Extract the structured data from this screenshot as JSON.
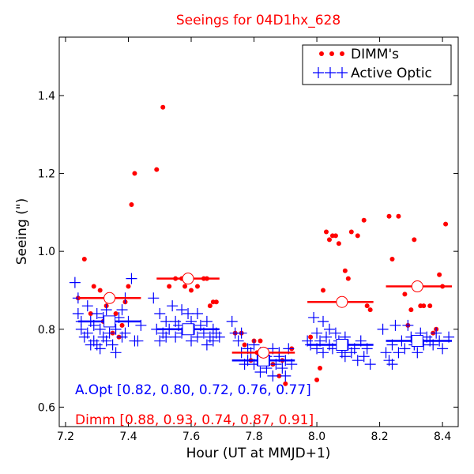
{
  "chart_data": {
    "type": "scatter",
    "title": "Seeings for 04D1hx_628",
    "xlabel": "Hour (UT at MMJD+1)",
    "ylabel": "Seeing (\")",
    "xlim": [
      7.18,
      8.45
    ],
    "ylim": [
      0.55,
      1.55
    ],
    "xticks": [
      7.2,
      7.4,
      7.6,
      7.8,
      8.0,
      8.2,
      8.4
    ],
    "xtick_labels": [
      "7.2",
      "7.4",
      "7.6",
      "7.8",
      "8.0",
      "8.2",
      "8.4"
    ],
    "yticks": [
      0.6,
      0.8,
      1.0,
      1.2,
      1.4
    ],
    "ytick_labels": [
      "0.6",
      "0.8",
      "1.0",
      "1.2",
      "1.4"
    ],
    "grid": false,
    "legend": {
      "position": "top-right",
      "entries": [
        {
          "label": "DIMM's",
          "color": "#ff0000",
          "marker": "dot"
        },
        {
          "label": "Active Optic",
          "color": "#0000ff",
          "marker": "plus"
        }
      ]
    },
    "annotations": {
      "aopt": {
        "text": "A.Opt [0.82, 0.80, 0.72, 0.76, 0.77]",
        "color": "#0000ff"
      },
      "dimm": {
        "text": "Dimm [0.88, 0.93, 0.74, 0.87, 0.91]",
        "color": "#ff0000"
      }
    },
    "colors": {
      "dimm": "#ff0000",
      "aopt": "#0000ff"
    },
    "series": [
      {
        "name": "DIMM's",
        "marker": "dot",
        "color": "#ff0000",
        "x": [
          7.24,
          7.26,
          7.28,
          7.29,
          7.31,
          7.32,
          7.33,
          7.34,
          7.35,
          7.36,
          7.37,
          7.38,
          7.39,
          7.4,
          7.41,
          7.42,
          7.49,
          7.51,
          7.53,
          7.55,
          7.57,
          7.58,
          7.59,
          7.6,
          7.62,
          7.64,
          7.65,
          7.66,
          7.67,
          7.68,
          7.74,
          7.76,
          7.77,
          7.79,
          7.8,
          7.81,
          7.82,
          7.84,
          7.86,
          7.88,
          7.89,
          7.9,
          7.92,
          7.98,
          8.0,
          8.01,
          8.02,
          8.03,
          8.04,
          8.05,
          8.06,
          8.07,
          8.09,
          8.1,
          8.11,
          8.13,
          8.15,
          8.16,
          8.17,
          8.23,
          8.24,
          8.26,
          8.28,
          8.29,
          8.3,
          8.31,
          8.33,
          8.34,
          8.36,
          8.37,
          8.38,
          8.39,
          8.4,
          8.41
        ],
        "values": [
          0.88,
          0.98,
          0.84,
          0.91,
          0.9,
          0.82,
          0.86,
          0.82,
          0.79,
          0.84,
          0.78,
          0.81,
          0.87,
          0.91,
          1.12,
          1.2,
          1.21,
          1.37,
          0.91,
          0.93,
          0.93,
          0.91,
          0.93,
          0.9,
          0.91,
          0.93,
          0.93,
          0.86,
          0.87,
          0.87,
          0.79,
          0.79,
          0.76,
          0.72,
          0.77,
          0.74,
          0.77,
          0.72,
          0.71,
          0.68,
          0.72,
          0.66,
          0.75,
          0.78,
          0.67,
          0.7,
          0.9,
          1.05,
          1.03,
          1.04,
          1.04,
          1.02,
          0.95,
          0.93,
          1.05,
          1.04,
          1.08,
          0.86,
          0.85,
          1.09,
          0.98,
          1.09,
          0.89,
          0.81,
          0.85,
          1.03,
          0.86,
          0.86,
          0.86,
          0.79,
          0.8,
          0.94,
          0.91,
          1.07
        ]
      },
      {
        "name": "Active Optic",
        "marker": "plus",
        "color": "#0000ff",
        "x": [
          7.23,
          7.24,
          7.24,
          7.25,
          7.25,
          7.26,
          7.27,
          7.27,
          7.28,
          7.28,
          7.29,
          7.29,
          7.3,
          7.3,
          7.31,
          7.31,
          7.32,
          7.32,
          7.33,
          7.33,
          7.34,
          7.35,
          7.35,
          7.36,
          7.36,
          7.37,
          7.38,
          7.38,
          7.39,
          7.39,
          7.4,
          7.41,
          7.42,
          7.43,
          7.44,
          7.48,
          7.49,
          7.5,
          7.5,
          7.51,
          7.52,
          7.52,
          7.53,
          7.54,
          7.55,
          7.55,
          7.56,
          7.57,
          7.57,
          7.58,
          7.59,
          7.6,
          7.6,
          7.61,
          7.62,
          7.62,
          7.63,
          7.64,
          7.65,
          7.65,
          7.66,
          7.67,
          7.67,
          7.68,
          7.69,
          7.73,
          7.74,
          7.75,
          7.76,
          7.76,
          7.77,
          7.78,
          7.78,
          7.79,
          7.8,
          7.8,
          7.81,
          7.82,
          7.82,
          7.83,
          7.84,
          7.84,
          7.85,
          7.86,
          7.86,
          7.87,
          7.88,
          7.88,
          7.89,
          7.9,
          7.9,
          7.91,
          7.92,
          7.97,
          7.98,
          7.99,
          8.0,
          8.0,
          8.01,
          8.02,
          8.02,
          8.03,
          8.04,
          8.04,
          8.05,
          8.06,
          8.07,
          8.08,
          8.09,
          8.09,
          8.1,
          8.11,
          8.12,
          8.13,
          8.14,
          8.15,
          8.16,
          8.17,
          8.21,
          8.22,
          8.23,
          8.24,
          8.24,
          8.25,
          8.26,
          8.27,
          8.28,
          8.29,
          8.3,
          8.31,
          8.32,
          8.33,
          8.34,
          8.35,
          8.36,
          8.37,
          8.38,
          8.39,
          8.4,
          8.42
        ],
        "values": [
          0.92,
          0.88,
          0.84,
          0.82,
          0.8,
          0.78,
          0.86,
          0.79,
          0.76,
          0.82,
          0.81,
          0.77,
          0.84,
          0.76,
          0.8,
          0.75,
          0.83,
          0.78,
          0.85,
          0.77,
          0.79,
          0.82,
          0.76,
          0.8,
          0.74,
          0.83,
          0.78,
          0.85,
          0.79,
          0.88,
          0.82,
          0.93,
          0.77,
          0.77,
          0.81,
          0.88,
          0.8,
          0.84,
          0.77,
          0.79,
          0.82,
          0.78,
          0.8,
          0.86,
          0.78,
          0.82,
          0.81,
          0.85,
          0.79,
          0.8,
          0.84,
          0.77,
          0.82,
          0.8,
          0.78,
          0.84,
          0.81,
          0.79,
          0.76,
          0.82,
          0.78,
          0.8,
          0.77,
          0.79,
          0.78,
          0.82,
          0.79,
          0.77,
          0.74,
          0.79,
          0.71,
          0.75,
          0.72,
          0.74,
          0.71,
          0.76,
          0.72,
          0.69,
          0.74,
          0.72,
          0.7,
          0.73,
          0.72,
          0.68,
          0.75,
          0.71,
          0.74,
          0.73,
          0.7,
          0.72,
          0.68,
          0.75,
          0.71,
          0.77,
          0.76,
          0.83,
          0.75,
          0.79,
          0.77,
          0.82,
          0.74,
          0.78,
          0.8,
          0.76,
          0.75,
          0.79,
          0.77,
          0.74,
          0.78,
          0.73,
          0.76,
          0.74,
          0.75,
          0.72,
          0.77,
          0.73,
          0.75,
          0.71,
          0.8,
          0.74,
          0.72,
          0.71,
          0.76,
          0.81,
          0.74,
          0.77,
          0.75,
          0.81,
          0.78,
          0.76,
          0.74,
          0.79,
          0.76,
          0.78,
          0.77,
          0.76,
          0.79,
          0.77,
          0.75,
          0.78
        ]
      }
    ],
    "bins": [
      {
        "range": [
          7.24,
          7.44
        ],
        "aopt_mean": 0.82,
        "dimm_mean": 0.88,
        "aopt_center": 7.34,
        "dimm_center": 7.34
      },
      {
        "range": [
          7.49,
          7.69
        ],
        "aopt_mean": 0.8,
        "dimm_mean": 0.93,
        "aopt_center": 7.59,
        "dimm_center": 7.59
      },
      {
        "range": [
          7.73,
          7.93
        ],
        "aopt_mean": 0.72,
        "dimm_mean": 0.74,
        "aopt_center": 7.83,
        "dimm_center": 7.83
      },
      {
        "range": [
          7.97,
          8.18
        ],
        "aopt_mean": 0.76,
        "dimm_mean": 0.87,
        "aopt_center": 8.08,
        "dimm_center": 8.08
      },
      {
        "range": [
          8.22,
          8.43
        ],
        "aopt_mean": 0.77,
        "dimm_mean": 0.91,
        "aopt_center": 8.32,
        "dimm_center": 8.32
      }
    ]
  }
}
